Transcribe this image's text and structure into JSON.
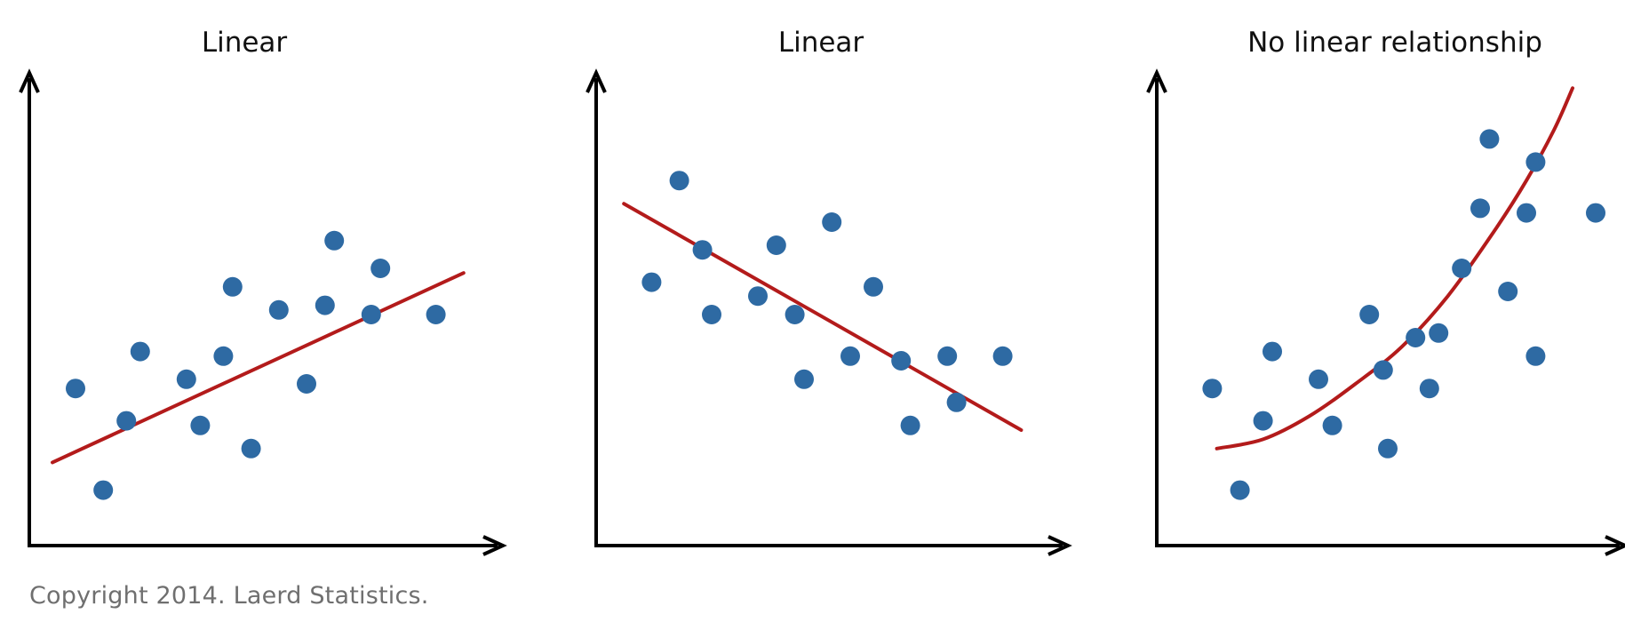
{
  "copyright": "Copyright 2014. Laerd Statistics.",
  "colors": {
    "points": "#2e6aa3",
    "fit_line": "#b31b1b",
    "axes": "#000000",
    "background": "#ffffff"
  },
  "chart_data": [
    {
      "type": "scatter",
      "title": "Linear",
      "xlabel": "",
      "ylabel": "",
      "xlim": [
        0,
        10
      ],
      "ylim": [
        0,
        10
      ],
      "grid": false,
      "points": [
        [
          1.0,
          3.4
        ],
        [
          1.6,
          1.2
        ],
        [
          2.1,
          2.7
        ],
        [
          2.4,
          4.2
        ],
        [
          3.4,
          3.6
        ],
        [
          3.7,
          2.6
        ],
        [
          4.2,
          4.1
        ],
        [
          4.4,
          5.6
        ],
        [
          4.8,
          2.1
        ],
        [
          5.4,
          5.1
        ],
        [
          6.0,
          3.5
        ],
        [
          6.4,
          5.2
        ],
        [
          6.6,
          6.6
        ],
        [
          7.4,
          5.0
        ],
        [
          7.6,
          6.0
        ],
        [
          8.8,
          5.0
        ]
      ],
      "fit": {
        "type": "linear",
        "points": [
          [
            0.5,
            1.8
          ],
          [
            9.4,
            5.9
          ]
        ]
      }
    },
    {
      "type": "scatter",
      "title": "Linear",
      "xlabel": "",
      "ylabel": "",
      "xlim": [
        0,
        10
      ],
      "ylim": [
        0,
        10
      ],
      "grid": false,
      "points": [
        [
          1.2,
          5.7
        ],
        [
          1.8,
          7.9
        ],
        [
          2.3,
          6.4
        ],
        [
          2.5,
          5.0
        ],
        [
          3.5,
          5.4
        ],
        [
          3.9,
          6.5
        ],
        [
          4.3,
          5.0
        ],
        [
          4.5,
          3.6
        ],
        [
          5.1,
          7.0
        ],
        [
          5.5,
          4.1
        ],
        [
          6.0,
          5.6
        ],
        [
          6.6,
          4.0
        ],
        [
          6.8,
          2.6
        ],
        [
          7.6,
          4.1
        ],
        [
          7.8,
          3.1
        ],
        [
          8.8,
          4.1
        ]
      ],
      "fit": {
        "type": "linear",
        "points": [
          [
            0.6,
            7.4
          ],
          [
            9.2,
            2.5
          ]
        ]
      }
    },
    {
      "type": "scatter",
      "title": "No linear relationship",
      "xlabel": "",
      "ylabel": "",
      "xlim": [
        0,
        10
      ],
      "ylim": [
        0,
        10
      ],
      "grid": false,
      "points": [
        [
          1.2,
          3.4
        ],
        [
          1.8,
          1.2
        ],
        [
          2.3,
          2.7
        ],
        [
          2.5,
          4.2
        ],
        [
          3.5,
          3.6
        ],
        [
          3.8,
          2.6
        ],
        [
          4.6,
          5.0
        ],
        [
          4.9,
          3.8
        ],
        [
          5.0,
          2.1
        ],
        [
          5.9,
          3.4
        ],
        [
          5.6,
          4.5
        ],
        [
          6.1,
          4.6
        ],
        [
          6.6,
          6.0
        ],
        [
          7.0,
          7.3
        ],
        [
          7.2,
          8.8
        ],
        [
          7.6,
          5.5
        ],
        [
          8.0,
          7.2
        ],
        [
          8.2,
          4.1
        ],
        [
          8.2,
          8.3
        ],
        [
          9.5,
          7.2
        ]
      ],
      "fit": {
        "type": "curve",
        "points": [
          [
            1.3,
            2.1
          ],
          [
            2.3,
            2.3
          ],
          [
            3.3,
            2.8
          ],
          [
            4.3,
            3.5
          ],
          [
            5.3,
            4.3
          ],
          [
            6.3,
            5.4
          ],
          [
            7.3,
            6.8
          ],
          [
            8.0,
            7.9
          ],
          [
            8.6,
            9.0
          ],
          [
            9.0,
            9.9
          ]
        ]
      }
    }
  ]
}
